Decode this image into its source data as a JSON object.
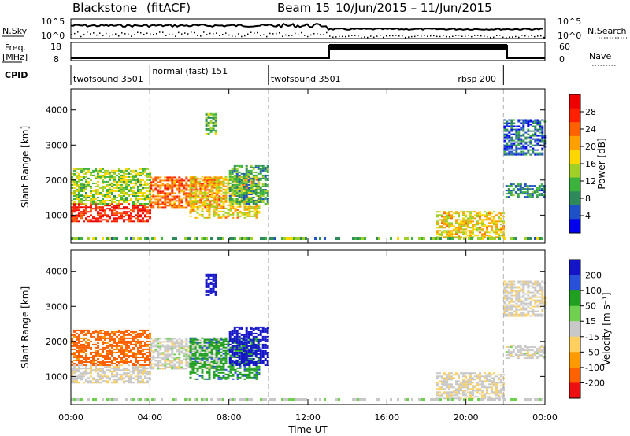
{
  "title": {
    "station": "Blackstone",
    "mode": "(fitACF)",
    "beam": "Beam 15",
    "date_range": "10/Jun/2015 – 11/Jun/2015"
  },
  "panels": {
    "nsky_label": "N.Sky",
    "nsearch_label": "N.Search",
    "nsky_ticks": [
      "10^5",
      "10^0"
    ],
    "nsearch_ticks": [
      "10^5",
      "10^0"
    ],
    "freq_label": "Freq.",
    "freq_unit": "[MHz]",
    "freq_ticks": [
      "18",
      "8"
    ],
    "nave_label": "Nave",
    "nave_ticks": [
      "60",
      "0"
    ],
    "cpid_label": "CPID"
  },
  "cpid_segments": [
    {
      "label": "twofsound 3501",
      "start_h": 0.0,
      "end_h": 4.0
    },
    {
      "label": "normal (fast) 151",
      "start_h": 4.0,
      "end_h": 10.0
    },
    {
      "label": "twofsound 3501",
      "start_h": 10.0,
      "end_h": 21.9
    },
    {
      "label": "rbsp 200",
      "start_h": 21.9,
      "end_h": 24.0
    }
  ],
  "chart_data": {
    "type": "heatmap",
    "x_label": "Time UT",
    "x_range_hours": [
      0,
      24
    ],
    "x_ticks": [
      "00:00",
      "04:00",
      "08:00",
      "12:00",
      "16:00",
      "20:00",
      "00:00"
    ],
    "y_label": "Slant Range [km]",
    "y_range_km": [
      200,
      4600
    ],
    "y_ticks": [
      1000,
      2000,
      3000,
      4000
    ],
    "power": {
      "colorbar_label": "Power [dB]",
      "colorbar_range": [
        0,
        32
      ],
      "colorbar_ticks": [
        "28",
        "24",
        "20",
        "16",
        "12",
        "8",
        "4"
      ],
      "colors": [
        "#0000ee",
        "#1e50c8",
        "#2e8a5a",
        "#3cb33c",
        "#a0d028",
        "#ffd700",
        "#ffa000",
        "#ff6000",
        "#ff2000",
        "#ee0000"
      ]
    },
    "velocity": {
      "colorbar_label": "Velocity [m s⁻¹]",
      "colorbar_ticks": [
        "200",
        "100",
        "50",
        "15",
        "-15",
        "-50",
        "-100",
        "-200"
      ],
      "colors": [
        "#1515c8",
        "#2850d8",
        "#20a020",
        "#70d050",
        "#c8c8c8",
        "#ffd060",
        "#ff9a00",
        "#ff6000",
        "#ee1010"
      ]
    },
    "echo_regions": [
      {
        "t0": 0.0,
        "t1": 4.0,
        "r0": 800,
        "r1": 1300,
        "power_db": 28,
        "velocity_ms": -5
      },
      {
        "t0": 0.0,
        "t1": 4.0,
        "r0": 1300,
        "r1": 2300,
        "power_db": 14,
        "velocity_ms": -90
      },
      {
        "t0": 4.0,
        "t1": 7.5,
        "r0": 1200,
        "r1": 2100,
        "power_db": 24,
        "velocity_ms": 0
      },
      {
        "t0": 6.0,
        "t1": 9.5,
        "r0": 900,
        "r1": 2100,
        "power_db": 18,
        "velocity_ms": 60
      },
      {
        "t0": 8.0,
        "t1": 10.0,
        "r0": 1300,
        "r1": 2400,
        "power_db": 10,
        "velocity_ms": 180
      },
      {
        "t0": 6.8,
        "t1": 7.3,
        "r0": 3300,
        "r1": 3900,
        "power_db": 12,
        "velocity_ms": 220
      },
      {
        "t0": 18.5,
        "t1": 21.9,
        "r0": 350,
        "r1": 1100,
        "power_db": 18,
        "velocity_ms": -10
      },
      {
        "t0": 21.9,
        "t1": 24.0,
        "r0": 2700,
        "r1": 3700,
        "power_db": 6,
        "velocity_ms": -5
      },
      {
        "t0": 22.0,
        "t1": 24.0,
        "r0": 1500,
        "r1": 1900,
        "power_db": 8,
        "velocity_ms": 0
      }
    ]
  }
}
